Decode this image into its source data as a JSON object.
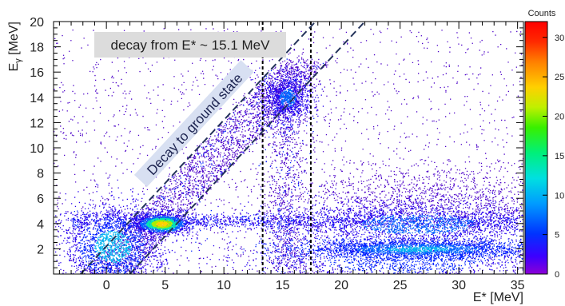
{
  "chart_data": {
    "type": "heatmap",
    "title": "",
    "xlabel": "E* [MeV]",
    "ylabel": "Eγ [MeV]",
    "xlim": [
      -4.5,
      35.5
    ],
    "ylim": [
      0,
      20
    ],
    "x_ticks": [
      0,
      5,
      10,
      15,
      20,
      25,
      30,
      35
    ],
    "y_ticks": [
      2,
      4,
      6,
      8,
      10,
      12,
      14,
      16,
      18,
      20
    ],
    "colorbar": {
      "title": "Counts",
      "range": [
        0,
        32
      ],
      "tick_labels": [
        "0",
        "5",
        "10",
        "15",
        "20",
        "25",
        "30"
      ],
      "tick_values": [
        0,
        5,
        10,
        15,
        20,
        25,
        30
      ]
    },
    "vertical_lines_x": [
      13.3,
      17.4
    ],
    "ground_state_band": {
      "description_label": "Decay to ground state",
      "lower_line": {
        "x_at_y0": 2.0,
        "slope": 1
      },
      "upper_line": {
        "x_at_y0": -2.2,
        "slope": 1
      }
    },
    "clusters": [
      {
        "x": 4.7,
        "y": 4.0,
        "peak_counts": 30
      },
      {
        "x": 0.5,
        "y": 2.0,
        "peak_counts": 12
      },
      {
        "x": 15.5,
        "y": 14.0,
        "peak_counts": 8
      },
      {
        "x": 26.0,
        "y": 2.0,
        "peak_counts": 10
      },
      {
        "x": 26.0,
        "y": 4.2,
        "peak_counts": 7
      }
    ],
    "annotations": [
      {
        "text": "decay from E* ~ 15.1 MeV"
      },
      {
        "text": "Decay to ground state"
      }
    ],
    "grid": false,
    "legend": "colorbar-right"
  }
}
